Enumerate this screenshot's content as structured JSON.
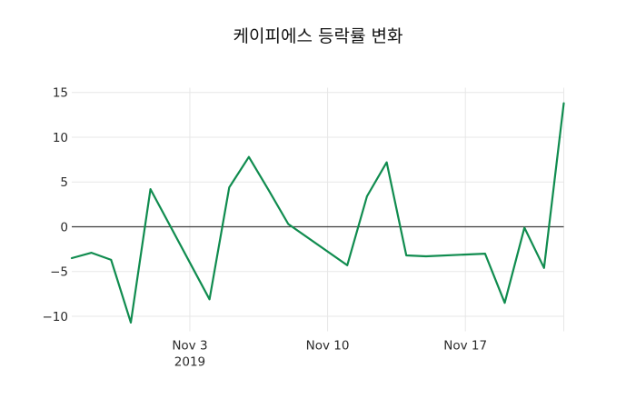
{
  "title": "케이피에스 등락률 변화",
  "colors": {
    "line": "#108c4f",
    "zero_line": "#3d3d3d",
    "grid": "#e7e7e7",
    "text": "#2b2b2b",
    "title_text": "#111111",
    "background": "#ffffff"
  },
  "chart_data": {
    "type": "line",
    "title": "케이피에스 등락률 변화",
    "series_name": "등락률",
    "x": [
      "Oct 28",
      "Oct 29",
      "Oct 30",
      "Oct 31",
      "Nov 1",
      "Nov 4",
      "Nov 5",
      "Nov 6",
      "Nov 7",
      "Nov 8",
      "Nov 11",
      "Nov 12",
      "Nov 13",
      "Nov 14",
      "Nov 15",
      "Nov 18",
      "Nov 19",
      "Nov 20",
      "Nov 21",
      "Nov 22"
    ],
    "x_day_offsets": [
      0,
      1,
      2,
      3,
      4,
      7,
      8,
      9,
      10,
      11,
      14,
      15,
      16,
      17,
      18,
      21,
      22,
      23,
      24,
      25
    ],
    "values": [
      -3.5,
      -2.9,
      -3.7,
      -10.7,
      4.2,
      -8.1,
      4.4,
      7.8,
      4.1,
      0.3,
      -4.3,
      3.4,
      7.2,
      -3.2,
      -3.3,
      -3.0,
      -8.5,
      -0.1,
      -4.6,
      13.8
    ],
    "ylim": [
      -11.9,
      15.5
    ],
    "y_ticks": [
      15,
      10,
      5,
      0,
      -5,
      -10
    ],
    "y_tick_labels": [
      "15",
      "10",
      "5",
      "0",
      "−5",
      "−10"
    ],
    "x_ticks": [
      {
        "label_line1": "Nov 3",
        "label_line2": "2019",
        "day_offset": 6
      },
      {
        "label_line1": "Nov 10",
        "label_line2": "",
        "day_offset": 13
      },
      {
        "label_line1": "Nov 17",
        "label_line2": "",
        "day_offset": 20
      }
    ],
    "x_gridline_offsets": [
      6,
      13,
      20,
      25
    ],
    "grid": true,
    "zero_line": true,
    "legend": "none"
  }
}
